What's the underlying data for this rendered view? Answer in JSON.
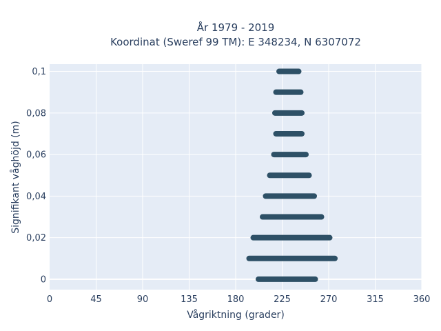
{
  "chart_data": {
    "type": "scatter",
    "title_lines": [
      "År 1979 - 2019",
      "Koordinat (Sweref 99 TM): E 348234, N 6307072"
    ],
    "xlabel": "Vågriktning (grader)",
    "ylabel": "Signifikant våghöjd (m)",
    "xlim": [
      0,
      360
    ],
    "ylim": [
      -0.005,
      0.1035
    ],
    "x_ticks": [
      0,
      45,
      90,
      135,
      180,
      225,
      270,
      315,
      360
    ],
    "x_tick_labels": [
      "0",
      "45",
      "90",
      "135",
      "180",
      "225",
      "270",
      "315",
      "360"
    ],
    "y_ticks": [
      0,
      0.02,
      0.04,
      0.06,
      0.08,
      0.1
    ],
    "y_tick_labels": [
      "0",
      "0,02",
      "0,04",
      "0,06",
      "0,08",
      "0,1"
    ],
    "grid": true,
    "colors": {
      "marker": "#2e5066",
      "plot_bg": "#e5ecf6",
      "grid": "#ffffff",
      "text": "#2a3f5f"
    },
    "series": [
      {
        "points_description_note": "",
        "bands": [
          {
            "y": 0.1,
            "x_min": 222,
            "x_max": 241
          },
          {
            "y": 0.09,
            "x_min": 219,
            "x_max": 243
          },
          {
            "y": 0.08,
            "x_min": 218,
            "x_max": 244
          },
          {
            "y": 0.07,
            "x_min": 219,
            "x_max": 244
          },
          {
            "y": 0.06,
            "x_min": 217,
            "x_max": 248
          },
          {
            "y": 0.05,
            "x_min": 213,
            "x_max": 251
          },
          {
            "y": 0.04,
            "x_min": 209,
            "x_max": 256
          },
          {
            "y": 0.03,
            "x_min": 206,
            "x_max": 263
          },
          {
            "y": 0.02,
            "x_min": 197,
            "x_max": 271
          },
          {
            "y": 0.01,
            "x_min": 193,
            "x_max": 276
          },
          {
            "y": 0.0,
            "x_min": 202,
            "x_max": 257
          }
        ]
      }
    ]
  }
}
